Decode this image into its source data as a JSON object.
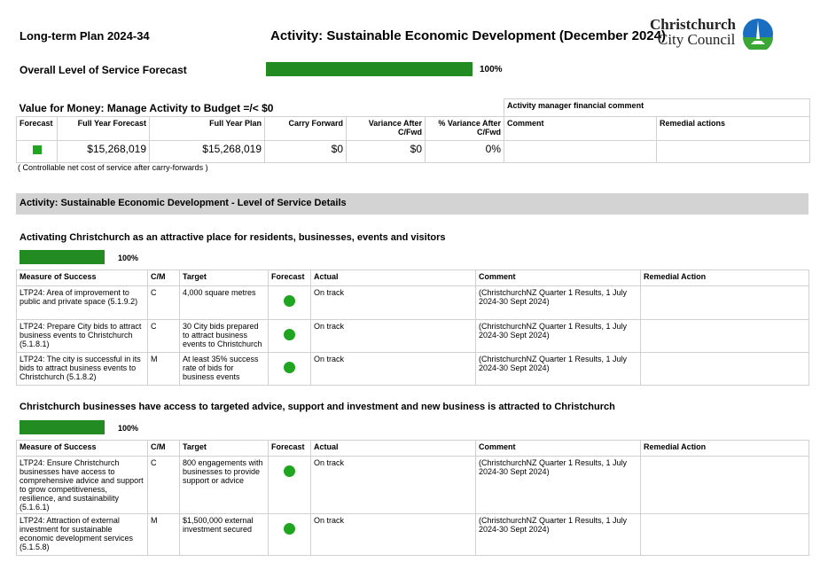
{
  "header": {
    "left": "Long-term Plan 2024-34",
    "title": "Activity: Sustainable Economic Development (December 2024)",
    "logo_line1": "Christchurch",
    "logo_line2": "City Council"
  },
  "overall": {
    "label": "Overall Level of Service Forecast",
    "percent": 100,
    "percent_label": "100%"
  },
  "budget": {
    "title": "Value for Money: Manage Activity to Budget =/< $0",
    "comment_title": "Activity manager financial comment",
    "headers": [
      "Forecast",
      "Full Year Forecast",
      "Full Year Plan",
      "Carry Forward",
      "Variance After C/Fwd",
      "% Variance After C/Fwd",
      "Comment",
      "Remedial actions"
    ],
    "row": {
      "full_year_forecast": "$15,268,019",
      "full_year_plan": "$15,268,019",
      "carry_forward": "$0",
      "variance": "$0",
      "pct_variance": "0%",
      "comment": "",
      "remedial": ""
    },
    "note": "( Controllable net cost of service after carry-forwards )"
  },
  "section_title": "Activity: Sustainable Economic Development - Level of Service Details",
  "headers": [
    "Measure of Success",
    "C/M",
    "Target",
    "Forecast",
    "Actual",
    "Comment",
    "Remedial Action"
  ],
  "groups": [
    {
      "title": "Activating Christchurch as an attractive place for residents, businesses, events and visitors",
      "percent": 100,
      "percent_label": "100%",
      "rows": [
        {
          "measure": "LTP24: Area of improvement to public and private space (5.1.9.2)",
          "cm": "C",
          "target": "4,000 square metres",
          "actual": "On track",
          "comment": "(ChristchurchNZ Quarter 1 Results, 1 July 2024-30 Sept 2024)",
          "remedial": ""
        },
        {
          "measure": "LTP24: Prepare City bids to attract business events to Christchurch (5.1.8.1)",
          "cm": "C",
          "target": "30 City bids prepared to attract business events to Christchurch",
          "actual": "On track",
          "comment": "(ChristchurchNZ Quarter 1 Results, 1 July 2024-30 Sept 2024)",
          "remedial": ""
        },
        {
          "measure": "LTP24: The city is successful in its bids to attract business events to Christchurch (5.1.8.2)",
          "cm": "M",
          "target": "At least 35% success rate of bids for business events",
          "actual": "On track",
          "comment": "(ChristchurchNZ Quarter 1 Results, 1 July 2024-30 Sept 2024)",
          "remedial": ""
        }
      ]
    },
    {
      "title": "Christchurch businesses have access to targeted advice, support and investment and new business is attracted to Christchurch",
      "percent": 100,
      "percent_label": "100%",
      "rows": [
        {
          "measure": "LTP24: Ensure Christchurch businesses have access to comprehensive advice and support to grow competitiveness, resilience, and sustainability  (5.1.6.1)",
          "cm": "C",
          "target": "800 engagements with businesses to provide support or advice",
          "actual": "On track",
          "comment": "(ChristchurchNZ Quarter 1 Results, 1 July 2024-30 Sept 2024)",
          "remedial": ""
        },
        {
          "measure": "LTP24: Attraction of external investment for sustainable economic development services (5.1.5.8)",
          "cm": "M",
          "target": "$1,500,000 external investment secured",
          "actual": "On track",
          "comment": "(ChristchurchNZ Quarter 1 Results, 1 July 2024-30 Sept 2024)",
          "remedial": ""
        }
      ]
    }
  ]
}
